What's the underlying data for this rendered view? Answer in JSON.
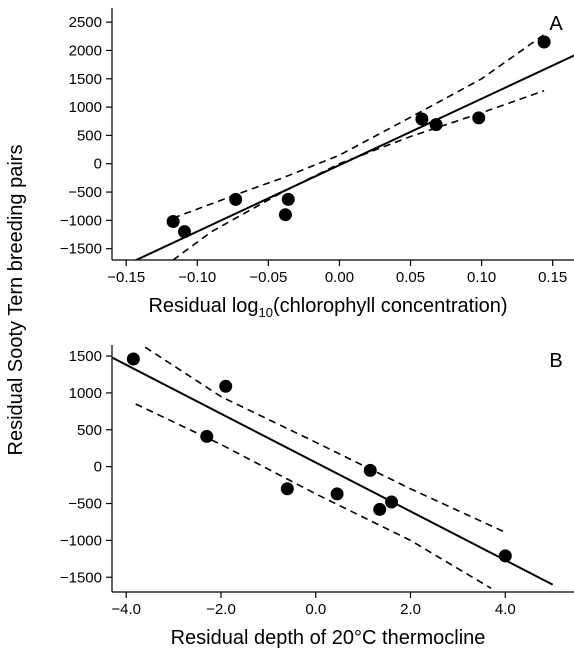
{
  "figure": {
    "shared_ylabel": "Residual Sooty Tern breeding pairs"
  },
  "chart_data": [
    {
      "type": "scatter",
      "panel_label": "A",
      "xlabel_main": "Residual log",
      "xlabel_sub": "10",
      "xlabel_tail": "(chlorophyll concentration)",
      "xlim": [
        -0.16,
        0.165
      ],
      "ylim": [
        -1700,
        2750
      ],
      "xticks": [
        -0.15,
        -0.1,
        -0.05,
        0.0,
        0.05,
        0.1,
        0.15
      ],
      "xtick_labels": [
        "−0.15",
        "−0.10",
        "−0.05",
        "0.00",
        "0.05",
        "0.10",
        "0.15"
      ],
      "yticks": [
        -1500,
        -1000,
        -500,
        0,
        500,
        1000,
        1500,
        2000,
        2500
      ],
      "ytick_labels": [
        "−1500",
        "−1000",
        "−500",
        "0",
        "500",
        "1000",
        "1500",
        "2000",
        "2500"
      ],
      "points": [
        {
          "x": -0.117,
          "y": -1020
        },
        {
          "x": -0.109,
          "y": -1200
        },
        {
          "x": -0.073,
          "y": -630
        },
        {
          "x": -0.038,
          "y": -900
        },
        {
          "x": -0.036,
          "y": -630
        },
        {
          "x": 0.058,
          "y": 790
        },
        {
          "x": 0.068,
          "y": 690
        },
        {
          "x": 0.098,
          "y": 810
        },
        {
          "x": 0.144,
          "y": 2150
        }
      ],
      "fit_line": [
        {
          "x": -0.16,
          "y": -1900
        },
        {
          "x": 0.165,
          "y": 1910
        }
      ],
      "ci_lower": [
        {
          "x": -0.117,
          "y": -1700
        },
        {
          "x": -0.09,
          "y": -1200
        },
        {
          "x": -0.04,
          "y": -500
        },
        {
          "x": 0.0,
          "y": 0
        },
        {
          "x": 0.05,
          "y": 480
        },
        {
          "x": 0.1,
          "y": 900
        },
        {
          "x": 0.144,
          "y": 1290
        }
      ],
      "ci_upper": [
        {
          "x": -0.117,
          "y": -960
        },
        {
          "x": -0.07,
          "y": -520
        },
        {
          "x": -0.04,
          "y": -250
        },
        {
          "x": 0.0,
          "y": 150
        },
        {
          "x": 0.05,
          "y": 820
        },
        {
          "x": 0.1,
          "y": 1500
        },
        {
          "x": 0.144,
          "y": 2280
        }
      ]
    },
    {
      "type": "scatter",
      "panel_label": "B",
      "xlabel": "Residual depth of 20°C thermocline",
      "xlim": [
        -4.3,
        5.45
      ],
      "ylim": [
        -1700,
        1650
      ],
      "xticks": [
        -4.0,
        -2.0,
        0.0,
        2.0,
        4.0
      ],
      "xtick_labels": [
        "−4.0",
        "−2.0",
        "0.0",
        "2.0",
        "4.0"
      ],
      "yticks": [
        -1500,
        -1000,
        -500,
        0,
        500,
        1000,
        1500
      ],
      "ytick_labels": [
        "−1500",
        "−1000",
        "−500",
        "0",
        "500",
        "1000",
        "1500"
      ],
      "points": [
        {
          "x": -3.85,
          "y": 1460
        },
        {
          "x": -1.9,
          "y": 1090
        },
        {
          "x": -2.3,
          "y": 410
        },
        {
          "x": -0.6,
          "y": -300
        },
        {
          "x": 0.45,
          "y": -370
        },
        {
          "x": 1.15,
          "y": -50
        },
        {
          "x": 1.35,
          "y": -580
        },
        {
          "x": 1.6,
          "y": -480
        },
        {
          "x": 4.0,
          "y": -1210
        }
      ],
      "fit_line": [
        {
          "x": -4.3,
          "y": 1480
        },
        {
          "x": 5.0,
          "y": -1600
        }
      ],
      "ci_lower": [
        {
          "x": -3.8,
          "y": 850
        },
        {
          "x": -2.0,
          "y": 300
        },
        {
          "x": 0.0,
          "y": -370
        },
        {
          "x": 2.0,
          "y": -1000
        },
        {
          "x": 3.7,
          "y": -1650
        }
      ],
      "ci_upper": [
        {
          "x": -3.6,
          "y": 1620
        },
        {
          "x": -2.0,
          "y": 950
        },
        {
          "x": 0.0,
          "y": 330
        },
        {
          "x": 2.0,
          "y": -300
        },
        {
          "x": 4.0,
          "y": -890
        }
      ]
    }
  ]
}
